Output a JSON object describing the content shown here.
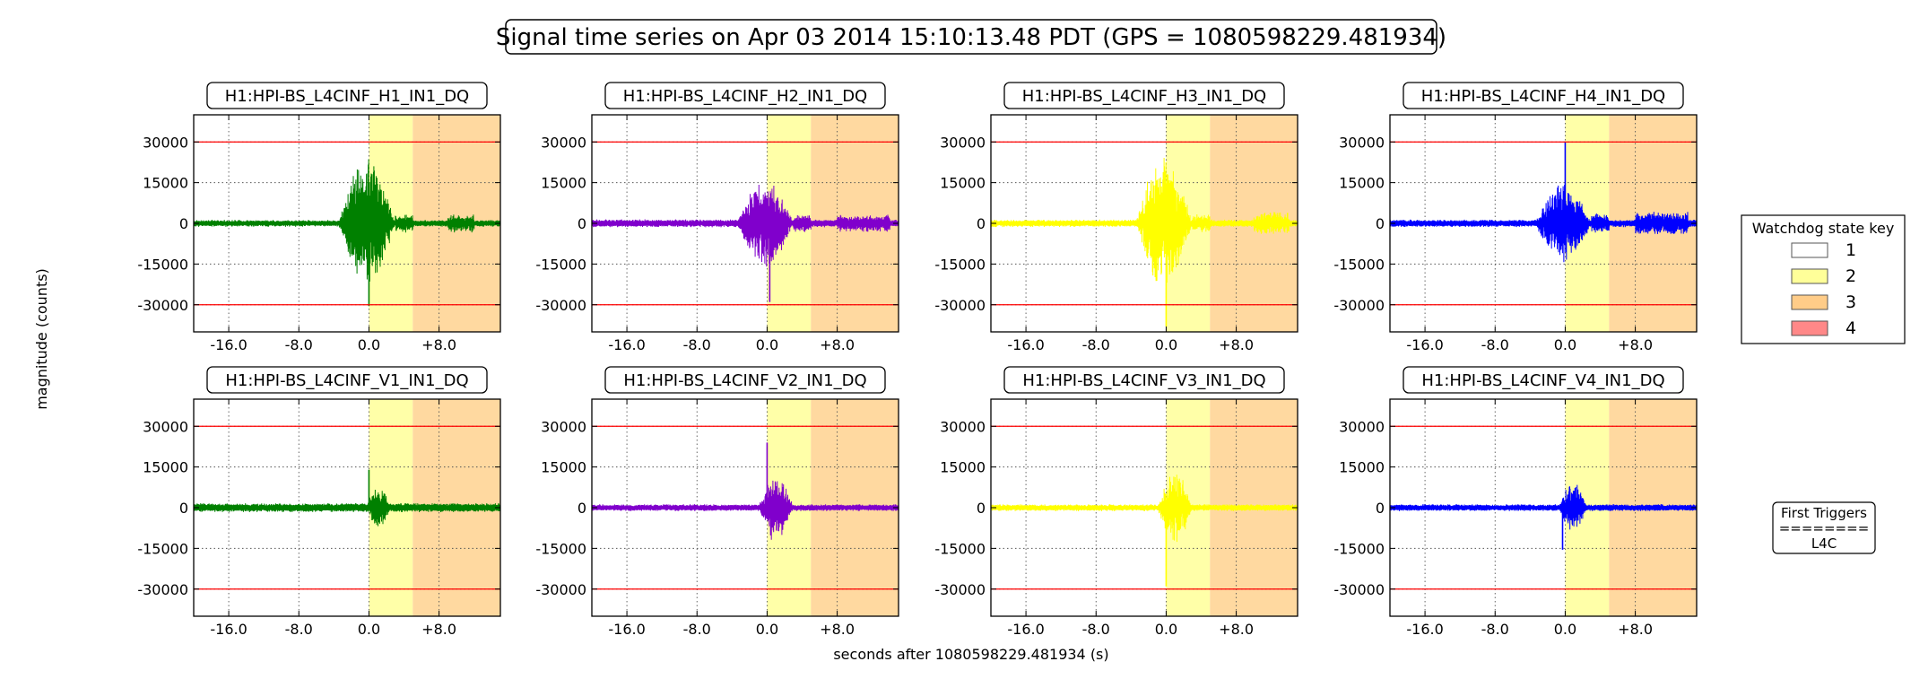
{
  "figure": {
    "title": "Signal time series on Apr 03 2014 15:10:13.48 PDT (GPS = 1080598229.481934)",
    "ylabel": "magnitude (counts)",
    "xlabel": "seconds after 1080598229.481934 (s)"
  },
  "legend": {
    "title": "Watchdog state key",
    "items": [
      {
        "label": "1",
        "color": "#ffffff"
      },
      {
        "label": "2",
        "color": "#ffff99"
      },
      {
        "label": "3",
        "color": "#ffcc88"
      },
      {
        "label": "4",
        "color": "#ff8888"
      }
    ]
  },
  "triggers": {
    "lines": [
      "First Triggers",
      "========",
      "L4C"
    ]
  },
  "colors": {
    "state2": "#ffffa8",
    "state3": "#ffd9a0",
    "threshold": "#ff0000"
  },
  "chart_data": [
    {
      "type": "line",
      "title": "H1:HPI-BS_L4CINF_H1_IN1_DQ",
      "color": "#008000",
      "xlim": [
        -20,
        15
      ],
      "ylim": [
        -40000,
        40000
      ],
      "xticks": [
        "-16.0",
        "-8.0",
        "0.0",
        "+8.0"
      ],
      "yticks": [
        "30000",
        "15000",
        "0",
        "-15000",
        "-30000"
      ],
      "thresholds": [
        30000,
        -30000
      ],
      "shading": [
        {
          "state": 2,
          "x": [
            0,
            5
          ]
        },
        {
          "state": 3,
          "x": [
            5,
            15
          ]
        }
      ],
      "noise": 1300,
      "burst": [
        {
          "x": [
            -3.5,
            3.0
          ],
          "amp": 26000
        }
      ],
      "tail": [
        {
          "x": [
            3,
            5
          ],
          "amp": 3500
        },
        {
          "x": [
            9,
            12
          ],
          "amp": 3500
        }
      ],
      "peak": {
        "x": 0.0,
        "y": -30500
      }
    },
    {
      "type": "line",
      "title": "H1:HPI-BS_L4CINF_H2_IN1_DQ",
      "color": "#8000cc",
      "xlim": [
        -20,
        15
      ],
      "ylim": [
        -40000,
        40000
      ],
      "xticks": [
        "-16.0",
        "-8.0",
        "0.0",
        "+8.0"
      ],
      "yticks": [
        "30000",
        "15000",
        "0",
        "-15000",
        "-30000"
      ],
      "thresholds": [
        30000,
        -30000
      ],
      "shading": [
        {
          "state": 2,
          "x": [
            0,
            5
          ]
        },
        {
          "state": 3,
          "x": [
            5,
            15
          ]
        }
      ],
      "noise": 1500,
      "burst": [
        {
          "x": [
            -3.5,
            3.0
          ],
          "amp": 18000
        }
      ],
      "tail": [
        {
          "x": [
            3,
            5
          ],
          "amp": 3500
        },
        {
          "x": [
            8,
            14
          ],
          "amp": 3500
        }
      ],
      "peak": {
        "x": 0.3,
        "y": -29000
      }
    },
    {
      "type": "line",
      "title": "H1:HPI-BS_L4CINF_H3_IN1_DQ",
      "color": "#ffff00",
      "xlim": [
        -20,
        15
      ],
      "ylim": [
        -40000,
        40000
      ],
      "xticks": [
        "-16.0",
        "-8.0",
        "0.0",
        "+8.0"
      ],
      "yticks": [
        "30000",
        "15000",
        "0",
        "-15000",
        "-30000"
      ],
      "thresholds": [
        30000,
        -30000
      ],
      "shading": [
        {
          "state": 2,
          "x": [
            0,
            5
          ]
        },
        {
          "state": 3,
          "x": [
            5,
            15
          ]
        }
      ],
      "noise": 1400,
      "burst": [
        {
          "x": [
            -3.5,
            3.0
          ],
          "amp": 26000
        }
      ],
      "tail": [
        {
          "x": [
            3,
            5
          ],
          "amp": 3500
        },
        {
          "x": [
            10,
            14
          ],
          "amp": 4500
        }
      ],
      "peak": {
        "x": 0.0,
        "y": -38000
      }
    },
    {
      "type": "line",
      "title": "H1:HPI-BS_L4CINF_H4_IN1_DQ",
      "color": "#0000ff",
      "xlim": [
        -20,
        15
      ],
      "ylim": [
        -40000,
        40000
      ],
      "xticks": [
        "-16.0",
        "-8.0",
        "0.0",
        "+8.0"
      ],
      "yticks": [
        "30000",
        "15000",
        "0",
        "-15000",
        "-30000"
      ],
      "thresholds": [
        30000,
        -30000
      ],
      "shading": [
        {
          "state": 2,
          "x": [
            0,
            5
          ]
        },
        {
          "state": 3,
          "x": [
            5,
            15
          ]
        }
      ],
      "noise": 1400,
      "burst": [
        {
          "x": [
            -3.5,
            3.0
          ],
          "amp": 16000
        }
      ],
      "tail": [
        {
          "x": [
            3,
            5
          ],
          "amp": 4000
        },
        {
          "x": [
            8,
            14
          ],
          "amp": 4500
        }
      ],
      "peak": {
        "x": 0.0,
        "y": 30000
      }
    },
    {
      "type": "line",
      "title": "H1:HPI-BS_L4CINF_V1_IN1_DQ",
      "color": "#008000",
      "xlim": [
        -20,
        15
      ],
      "ylim": [
        -40000,
        40000
      ],
      "xticks": [
        "-16.0",
        "-8.0",
        "0.0",
        "+8.0"
      ],
      "yticks": [
        "30000",
        "15000",
        "0",
        "-15000",
        "-30000"
      ],
      "thresholds": [
        30000,
        -30000
      ],
      "shading": [
        {
          "state": 2,
          "x": [
            0,
            5
          ]
        },
        {
          "state": 3,
          "x": [
            5,
            15
          ]
        }
      ],
      "noise": 1700,
      "burst": [
        {
          "x": [
            -0.3,
            2.5
          ],
          "amp": 9000
        }
      ],
      "tail": [],
      "peak": {
        "x": 0.0,
        "y": 14000
      }
    },
    {
      "type": "line",
      "title": "H1:HPI-BS_L4CINF_V2_IN1_DQ",
      "color": "#8000cc",
      "xlim": [
        -20,
        15
      ],
      "ylim": [
        -40000,
        40000
      ],
      "xticks": [
        "-16.0",
        "-8.0",
        "0.0",
        "+8.0"
      ],
      "yticks": [
        "30000",
        "15000",
        "0",
        "-15000",
        "-30000"
      ],
      "thresholds": [
        30000,
        -30000
      ],
      "shading": [
        {
          "state": 2,
          "x": [
            0,
            5
          ]
        },
        {
          "state": 3,
          "x": [
            5,
            15
          ]
        }
      ],
      "noise": 1300,
      "burst": [
        {
          "x": [
            -1.0,
            3.0
          ],
          "amp": 13000
        }
      ],
      "tail": [],
      "peak": {
        "x": 0.0,
        "y": 24000
      }
    },
    {
      "type": "line",
      "title": "H1:HPI-BS_L4CINF_V3_IN1_DQ",
      "color": "#ffff00",
      "xlim": [
        -20,
        15
      ],
      "ylim": [
        -40000,
        40000
      ],
      "xticks": [
        "-16.0",
        "-8.0",
        "0.0",
        "+8.0"
      ],
      "yticks": [
        "30000",
        "15000",
        "0",
        "-15000",
        "-30000"
      ],
      "thresholds": [
        30000,
        -30000
      ],
      "shading": [
        {
          "state": 2,
          "x": [
            0,
            5
          ]
        },
        {
          "state": 3,
          "x": [
            5,
            15
          ]
        }
      ],
      "noise": 1300,
      "burst": [
        {
          "x": [
            -1.0,
            3.0
          ],
          "amp": 14000
        }
      ],
      "tail": [],
      "peak": {
        "x": 0.0,
        "y": -29000
      }
    },
    {
      "type": "line",
      "title": "H1:HPI-BS_L4CINF_V4_IN1_DQ",
      "color": "#0000ff",
      "xlim": [
        -20,
        15
      ],
      "ylim": [
        -40000,
        40000
      ],
      "xticks": [
        "-16.0",
        "-8.0",
        "0.0",
        "+8.0"
      ],
      "yticks": [
        "30000",
        "15000",
        "0",
        "-15000",
        "-30000"
      ],
      "thresholds": [
        30000,
        -30000
      ],
      "shading": [
        {
          "state": 2,
          "x": [
            0,
            5
          ]
        },
        {
          "state": 3,
          "x": [
            5,
            15
          ]
        }
      ],
      "noise": 1300,
      "burst": [
        {
          "x": [
            -0.8,
            2.5
          ],
          "amp": 10000
        }
      ],
      "tail": [],
      "peak": {
        "x": -0.3,
        "y": -15500
      }
    }
  ]
}
